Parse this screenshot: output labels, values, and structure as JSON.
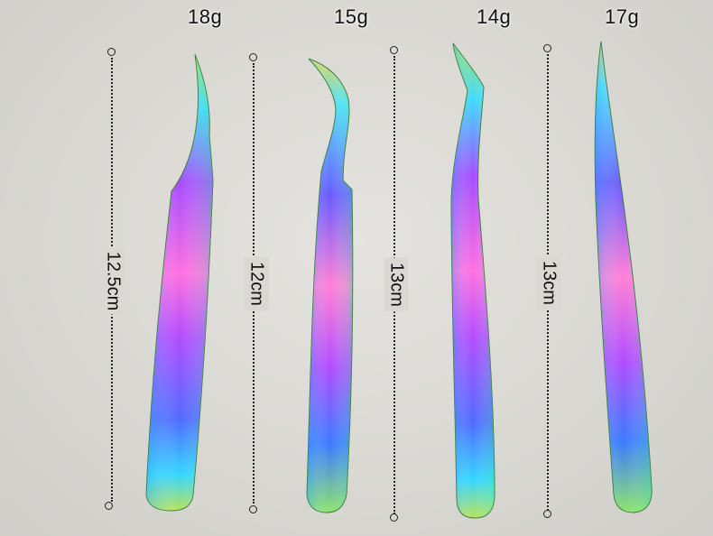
{
  "tweezers": [
    {
      "weight": "18g",
      "length": "12.5cm",
      "shape": "curved-tip"
    },
    {
      "weight": "15g",
      "length": "12cm",
      "shape": "hooked-tip"
    },
    {
      "weight": "14g",
      "length": "13cm",
      "shape": "angled-tip"
    },
    {
      "weight": "17g",
      "length": "13cm",
      "shape": "straight-tip"
    }
  ],
  "colors": {
    "background": "#d9d8d3",
    "iridescent": [
      "#2fd3ff",
      "#5a6bff",
      "#c24cff",
      "#ff6adf",
      "#6bff9a",
      "#e8d44a"
    ]
  }
}
